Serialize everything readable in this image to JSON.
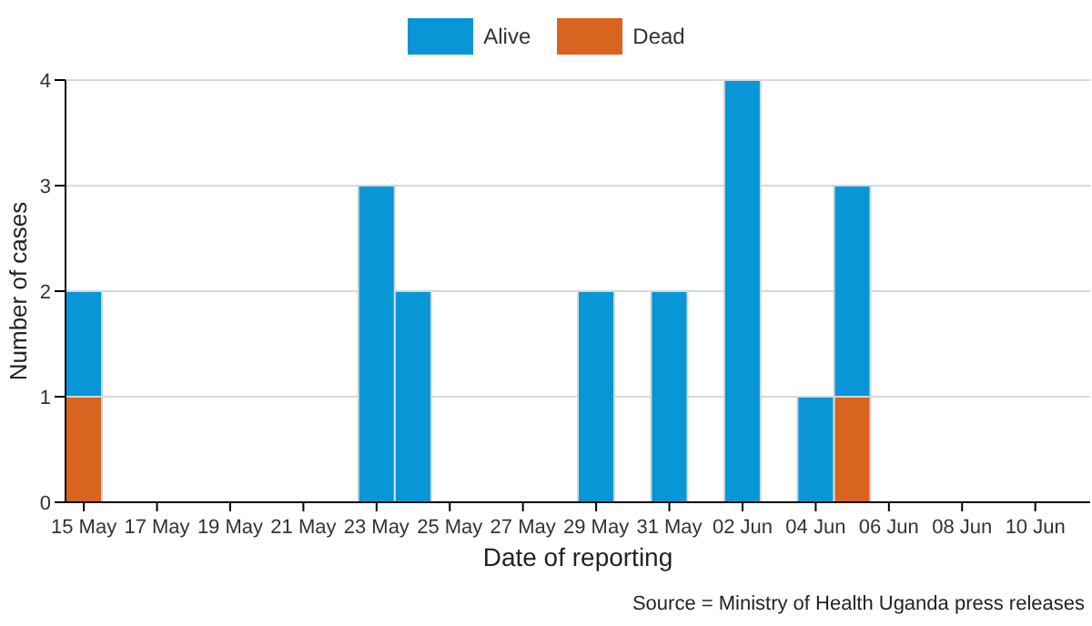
{
  "chart_data": {
    "type": "bar",
    "stacked": true,
    "xlabel": "Date of reporting",
    "ylabel": "Number of cases",
    "categories": [
      "15 May",
      null,
      "17 May",
      null,
      "19 May",
      null,
      "21 May",
      null,
      "23 May",
      null,
      "25 May",
      null,
      "27 May",
      null,
      "29 May",
      null,
      "31 May",
      null,
      "02 Jun",
      null,
      "04 Jun",
      null,
      "06 Jun",
      null,
      "08 Jun",
      null,
      "10 Jun",
      null
    ],
    "series": [
      {
        "name": "Dead",
        "color": "#d8641f",
        "values": [
          1,
          0,
          0,
          0,
          0,
          0,
          0,
          0,
          0,
          0,
          0,
          0,
          0,
          0,
          0,
          0,
          0,
          0,
          0,
          0,
          0,
          1,
          0,
          0,
          0,
          0,
          0,
          0
        ]
      },
      {
        "name": "Alive",
        "color": "#0896d6",
        "values": [
          1,
          0,
          0,
          0,
          0,
          0,
          0,
          0,
          3,
          2,
          0,
          0,
          0,
          0,
          2,
          0,
          2,
          0,
          4,
          0,
          1,
          2,
          0,
          0,
          0,
          0,
          0,
          0
        ]
      }
    ],
    "ylim": [
      0,
      4
    ],
    "yticks": [
      0,
      1,
      2,
      3,
      4
    ],
    "grid": "y",
    "legend": "top",
    "annotations": [
      "Source = Ministry of Health Uganda press releases"
    ]
  }
}
